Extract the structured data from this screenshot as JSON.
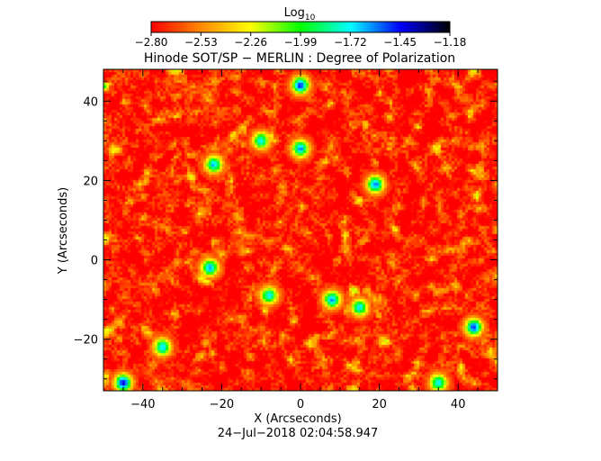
{
  "chart_data": {
    "type": "heatmap",
    "title": "Hinode SOT/SP − MERLIN : Degree of Polarization",
    "xlabel": "X (Arcseconds)",
    "ylabel": "Y (Arcseconds)",
    "xlim": [
      -50,
      50
    ],
    "ylim": [
      -33,
      48
    ],
    "xticks": [
      -40,
      -20,
      0,
      20,
      40
    ],
    "yticks": [
      -20,
      0,
      20,
      40
    ],
    "xtick_labels": [
      "−40",
      "−20",
      "0",
      "20",
      "40"
    ],
    "ytick_labels": [
      "−20",
      "0",
      "20",
      "40"
    ],
    "date_label": "24−Jul−2018 02:04:58.947",
    "colorbar": {
      "label": "Log",
      "label_subscript": "10",
      "range": [
        -2.8,
        -1.18
      ],
      "tick_labels": [
        "−2.80",
        "−2.53",
        "−2.26",
        "−1.99",
        "−1.72",
        "−1.45",
        "−1.18"
      ],
      "colormap": [
        "#ff0000",
        "#ff8800",
        "#ffff00",
        "#00ff00",
        "#00ffff",
        "#0000ff",
        "#000000"
      ]
    },
    "field": {
      "typical_value": -2.74,
      "description_of_distribution": "mostly red/orange background with scattered yellow-green patches and a few dark-blue network concentrations",
      "strong_concentrations": [
        {
          "x": 0,
          "y": 44,
          "value": -1.45
        },
        {
          "x": -45,
          "y": -31,
          "value": -1.4
        },
        {
          "x": 44,
          "y": -17,
          "value": -1.5
        },
        {
          "x": 19,
          "y": 19,
          "value": -1.55
        },
        {
          "x": -23,
          "y": -2,
          "value": -1.6
        },
        {
          "x": 8,
          "y": -10,
          "value": -1.6
        },
        {
          "x": 0,
          "y": 28,
          "value": -1.6
        },
        {
          "x": -35,
          "y": -22,
          "value": -1.65
        },
        {
          "x": -22,
          "y": 24,
          "value": -1.65
        },
        {
          "x": -10,
          "y": 30,
          "value": -1.7
        },
        {
          "x": -8,
          "y": -9,
          "value": -1.7
        },
        {
          "x": 15,
          "y": -12,
          "value": -1.7
        },
        {
          "x": 35,
          "y": -31,
          "value": -1.7
        }
      ]
    }
  }
}
